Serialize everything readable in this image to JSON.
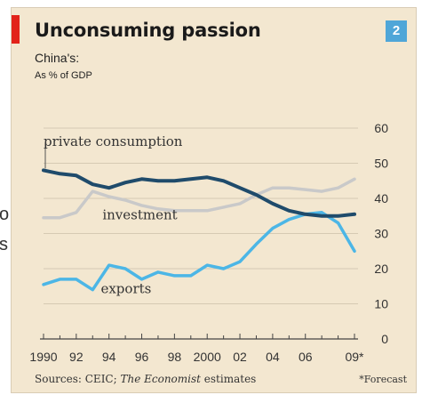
{
  "page": {
    "edge_chars": [
      "o",
      "s"
    ]
  },
  "header": {
    "title": "Unconsuming passion",
    "badge": "2",
    "subtitle": "China's:",
    "units": "As % of GDP"
  },
  "footer": {
    "sources_prefix": "Sources: CEIC; ",
    "sources_italic": "The Economist",
    "sources_suffix": " estimates",
    "note": "*Forecast"
  },
  "colors": {
    "background": "#f3e7d0",
    "accent_red": "#e2231a",
    "badge": "#4fa6d8",
    "private_consumption": "#1f4b6b",
    "investment": "#c9c9c9",
    "exports": "#4cb6e6",
    "gridline": "#d6cab3"
  },
  "chart_data": {
    "type": "line",
    "title": "Unconsuming passion",
    "subtitle": "China's:",
    "ylabel": "As % of GDP",
    "ylim": [
      0,
      60
    ],
    "y_ticks": [
      0,
      10,
      20,
      30,
      40,
      50,
      60
    ],
    "y_axis_position": "right",
    "grid": true,
    "x_range": [
      1990,
      2009
    ],
    "x_tick_labels": [
      "1990",
      "92",
      "94",
      "96",
      "98",
      "2000",
      "02",
      "04",
      "06",
      "09*"
    ],
    "x_tick_positions": [
      1990,
      1992,
      1994,
      1996,
      1998,
      2000,
      2002,
      2004,
      2006,
      2009
    ],
    "series": [
      {
        "name": "private consumption",
        "color_key": "private_consumption",
        "x": [
          1990,
          1991,
          1992,
          1993,
          1994,
          1995,
          1996,
          1997,
          1998,
          1999,
          2000,
          2001,
          2002,
          2003,
          2004,
          2005,
          2006,
          2007,
          2008,
          2009
        ],
        "values": [
          48,
          47,
          46.5,
          44,
          43,
          44.5,
          45.5,
          45,
          45,
          45.5,
          46,
          45,
          43,
          41,
          38.5,
          36.5,
          35.5,
          35,
          35,
          35.5
        ]
      },
      {
        "name": "investment",
        "color_key": "investment",
        "x": [
          1990,
          1991,
          1992,
          1993,
          1994,
          1995,
          1996,
          1997,
          1998,
          1999,
          2000,
          2001,
          2002,
          2003,
          2004,
          2005,
          2006,
          2007,
          2008,
          2009
        ],
        "values": [
          34.5,
          34.5,
          36,
          42,
          40.5,
          39.5,
          38,
          37,
          36.5,
          36.5,
          36.5,
          37.5,
          38.5,
          41,
          43,
          43,
          42.5,
          42,
          43,
          45.5
        ]
      },
      {
        "name": "exports",
        "color_key": "exports",
        "x": [
          1990,
          1991,
          1992,
          1993,
          1994,
          1995,
          1996,
          1997,
          1998,
          1999,
          2000,
          2001,
          2002,
          2003,
          2004,
          2005,
          2006,
          2007,
          2008,
          2009
        ],
        "values": [
          15.5,
          17,
          17,
          14,
          21,
          20,
          17,
          19,
          18,
          18,
          21,
          20,
          22,
          27,
          31.5,
          34,
          35.5,
          36,
          33,
          25
        ]
      }
    ],
    "annotations": [
      {
        "text": "private consumption",
        "series": "private consumption",
        "anchor_year": 1990,
        "anchor_value": 55
      },
      {
        "text": "investment",
        "series": "investment",
        "anchor_year": 1993.6,
        "anchor_value": 34
      },
      {
        "text": "exports",
        "series": "exports",
        "anchor_year": 1993.5,
        "anchor_value": 13
      }
    ]
  }
}
